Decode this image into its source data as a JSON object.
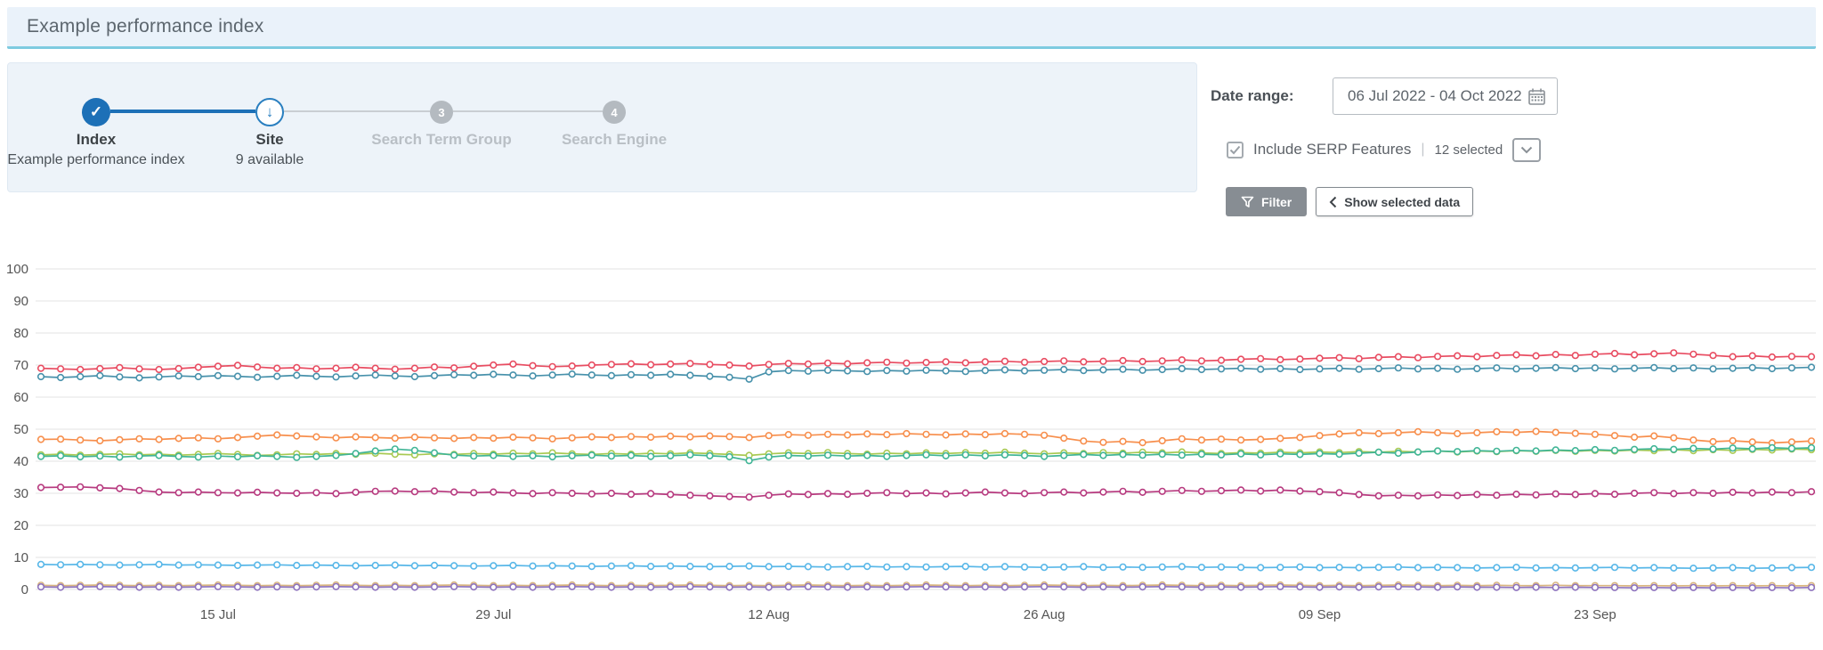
{
  "title": "Example performance index",
  "stepper": {
    "steps": [
      {
        "label": "Index",
        "sublabel": "Example performance index",
        "state": "complete"
      },
      {
        "label": "Site",
        "sublabel": "9 available",
        "state": "active"
      },
      {
        "label": "Search Term Group",
        "number": "3",
        "state": "upcoming"
      },
      {
        "label": "Search Engine",
        "number": "4",
        "state": "upcoming"
      }
    ]
  },
  "controls": {
    "date_range_label": "Date range:",
    "date_range_value": "06 Jul 2022 - 04 Oct 2022",
    "serp_label": "Include SERP Features",
    "serp_separator": "|",
    "serp_count": "12 selected",
    "serp_checked": true,
    "filter_label": "Filter",
    "show_selected_label": "Show selected data"
  },
  "colors": {
    "accent_blue": "#1d70b7",
    "title_underline": "#7ecbe0",
    "panel_bg": "#edf3f9",
    "grid": "#e3e3e3",
    "axis_text": "#555555"
  },
  "chart_data": {
    "type": "line",
    "title": "",
    "xlabel": "",
    "ylabel": "",
    "ylim": [
      0,
      100
    ],
    "y_ticks": [
      0,
      10,
      20,
      30,
      40,
      50,
      60,
      70,
      80,
      90,
      100
    ],
    "x_range": [
      "06 Jul 2022",
      "04 Oct 2022"
    ],
    "n_points": 91,
    "x_tick_labels": [
      "15 Jul",
      "29 Jul",
      "12 Aug",
      "26 Aug",
      "09 Sep",
      "23 Sep"
    ],
    "x_tick_indices": [
      9,
      23,
      37,
      51,
      65,
      79
    ],
    "grid": true,
    "legend": "none",
    "marker": "open-circle",
    "series": [
      {
        "name": "line-red",
        "color": "#e84c61",
        "values": [
          69.0,
          68.8,
          68.6,
          68.9,
          69.2,
          68.8,
          68.6,
          68.9,
          69.3,
          69.6,
          69.9,
          69.4,
          69.0,
          69.2,
          68.8,
          69.0,
          69.3,
          69.0,
          68.7,
          69.0,
          69.4,
          69.1,
          69.6,
          70.0,
          70.3,
          69.8,
          69.5,
          69.7,
          70.0,
          70.2,
          70.4,
          70.1,
          70.3,
          70.5,
          70.2,
          70.0,
          69.7,
          70.2,
          70.5,
          70.3,
          70.6,
          70.4,
          70.7,
          70.9,
          70.6,
          70.8,
          71.0,
          70.7,
          71.0,
          71.2,
          70.9,
          71.1,
          71.3,
          71.0,
          71.2,
          71.4,
          71.1,
          71.3,
          71.6,
          71.3,
          71.5,
          71.8,
          72.0,
          71.7,
          71.9,
          72.1,
          72.3,
          72.0,
          72.4,
          72.6,
          72.3,
          72.7,
          72.9,
          72.6,
          73.0,
          73.2,
          72.9,
          73.3,
          73.0,
          73.4,
          73.6,
          73.2,
          73.5,
          73.8,
          73.4,
          73.0,
          72.6,
          72.9,
          72.5,
          72.7,
          72.6
        ]
      },
      {
        "name": "line-teal-blue",
        "color": "#4791ab",
        "values": [
          66.4,
          66.1,
          66.4,
          66.7,
          66.3,
          66.0,
          66.3,
          66.6,
          66.4,
          66.7,
          66.5,
          66.2,
          66.5,
          66.8,
          66.5,
          66.3,
          66.6,
          66.9,
          66.6,
          66.4,
          66.7,
          67.0,
          66.8,
          67.1,
          66.9,
          66.6,
          66.9,
          67.2,
          66.9,
          66.7,
          67.0,
          66.8,
          67.1,
          66.8,
          66.5,
          66.2,
          65.6,
          67.9,
          68.3,
          68.1,
          68.4,
          68.2,
          68.0,
          68.3,
          68.1,
          68.4,
          68.2,
          68.0,
          68.3,
          68.5,
          68.2,
          68.4,
          68.6,
          68.3,
          68.5,
          68.7,
          68.4,
          68.6,
          68.9,
          68.6,
          68.8,
          69.0,
          68.7,
          68.9,
          68.6,
          68.8,
          69.0,
          68.7,
          68.9,
          69.1,
          68.8,
          69.0,
          68.7,
          68.9,
          69.1,
          68.8,
          69.0,
          69.2,
          68.9,
          69.1,
          68.8,
          69.0,
          69.2,
          68.9,
          69.1,
          68.8,
          69.0,
          69.2,
          68.9,
          69.1,
          69.3
        ]
      },
      {
        "name": "line-orange",
        "color": "#f78f4d",
        "values": [
          46.8,
          46.9,
          46.6,
          46.4,
          46.7,
          47.0,
          46.8,
          47.1,
          47.3,
          47.0,
          47.4,
          47.8,
          48.2,
          47.9,
          47.6,
          47.3,
          47.6,
          47.4,
          47.2,
          47.5,
          47.3,
          47.1,
          47.4,
          47.2,
          47.5,
          47.3,
          47.0,
          47.3,
          47.6,
          47.4,
          47.7,
          47.5,
          47.8,
          47.6,
          47.9,
          47.7,
          47.4,
          48.0,
          48.3,
          48.1,
          48.4,
          48.2,
          48.5,
          48.3,
          48.6,
          48.4,
          48.2,
          48.5,
          48.3,
          48.6,
          48.4,
          48.1,
          47.2,
          46.3,
          45.9,
          46.2,
          45.8,
          46.4,
          47.0,
          46.6,
          46.9,
          46.6,
          46.8,
          47.1,
          47.4,
          48.0,
          48.5,
          48.9,
          48.6,
          48.9,
          49.2,
          48.9,
          48.6,
          48.9,
          49.2,
          49.0,
          49.3,
          49.0,
          48.7,
          48.4,
          48.0,
          47.5,
          47.9,
          47.3,
          46.6,
          46.1,
          46.4,
          46.0,
          45.7,
          46.0,
          46.3
        ]
      },
      {
        "name": "line-lime",
        "color": "#a8c952",
        "values": [
          42.0,
          42.2,
          41.9,
          42.1,
          42.3,
          42.0,
          42.2,
          41.9,
          42.1,
          42.4,
          42.1,
          41.8,
          42.0,
          42.3,
          42.1,
          42.4,
          42.2,
          42.5,
          42.2,
          42.0,
          42.3,
          42.1,
          42.4,
          42.2,
          42.5,
          42.3,
          42.6,
          42.3,
          42.1,
          42.4,
          42.2,
          42.5,
          42.3,
          42.6,
          42.4,
          42.1,
          41.8,
          42.3,
          42.6,
          42.4,
          42.7,
          42.4,
          42.2,
          42.5,
          42.3,
          42.6,
          42.4,
          42.7,
          42.5,
          42.8,
          42.5,
          42.3,
          42.6,
          42.4,
          42.7,
          42.5,
          42.8,
          42.6,
          42.9,
          42.6,
          42.4,
          42.7,
          42.5,
          42.8,
          42.6,
          42.9,
          42.7,
          43.0,
          42.8,
          43.1,
          42.9,
          43.2,
          42.9,
          43.2,
          43.0,
          43.3,
          43.1,
          43.4,
          43.1,
          43.4,
          43.2,
          43.5,
          43.3,
          43.6,
          43.3,
          43.6,
          43.4,
          43.7,
          43.5,
          43.8,
          43.6
        ]
      },
      {
        "name": "line-green",
        "color": "#41b596",
        "values": [
          41.5,
          41.7,
          41.4,
          41.6,
          41.3,
          41.6,
          41.8,
          41.5,
          41.3,
          41.6,
          41.4,
          41.7,
          41.5,
          41.2,
          41.5,
          41.8,
          42.4,
          43.2,
          43.8,
          43.4,
          42.6,
          41.9,
          41.6,
          41.8,
          41.5,
          41.7,
          41.4,
          41.7,
          41.9,
          41.6,
          41.8,
          41.5,
          41.7,
          42.0,
          41.7,
          41.4,
          40.2,
          41.3,
          41.8,
          41.6,
          41.9,
          41.6,
          41.8,
          41.5,
          41.8,
          42.0,
          41.7,
          42.0,
          41.7,
          42.0,
          41.8,
          41.5,
          41.8,
          42.1,
          41.8,
          42.1,
          41.9,
          42.2,
          41.9,
          42.2,
          42.0,
          42.3,
          42.0,
          42.3,
          42.1,
          42.4,
          42.2,
          42.5,
          42.8,
          42.5,
          42.9,
          43.2,
          43.0,
          43.3,
          43.1,
          43.4,
          43.2,
          43.5,
          43.3,
          43.6,
          43.4,
          43.7,
          43.9,
          43.7,
          44.0,
          43.8,
          44.1,
          43.9,
          44.2,
          44.0,
          44.2
        ]
      },
      {
        "name": "line-magenta",
        "color": "#b73a7f",
        "values": [
          31.8,
          31.9,
          32.0,
          31.7,
          31.5,
          30.9,
          30.4,
          30.2,
          30.4,
          30.2,
          30.1,
          30.3,
          30.1,
          30.0,
          30.2,
          29.9,
          30.3,
          30.6,
          30.7,
          30.5,
          30.7,
          30.4,
          30.2,
          30.4,
          30.1,
          29.9,
          30.2,
          30.0,
          29.8,
          30.0,
          29.7,
          29.9,
          29.6,
          29.4,
          29.2,
          29.0,
          28.8,
          29.4,
          29.8,
          29.6,
          29.9,
          29.7,
          30.0,
          30.2,
          29.9,
          30.1,
          29.8,
          30.1,
          30.4,
          30.1,
          29.9,
          30.2,
          30.4,
          30.1,
          30.4,
          30.6,
          30.3,
          30.6,
          30.9,
          30.6,
          30.8,
          31.0,
          30.7,
          31.0,
          30.7,
          30.5,
          30.2,
          29.6,
          29.2,
          29.4,
          29.2,
          29.5,
          29.3,
          29.6,
          29.4,
          29.7,
          29.5,
          29.8,
          29.6,
          29.9,
          29.7,
          30.0,
          30.2,
          29.9,
          30.2,
          30.0,
          30.3,
          30.1,
          30.4,
          30.2,
          30.5
        ]
      },
      {
        "name": "line-sky",
        "color": "#58b7e8",
        "values": [
          7.8,
          7.7,
          7.8,
          7.7,
          7.6,
          7.7,
          7.8,
          7.6,
          7.7,
          7.6,
          7.5,
          7.6,
          7.7,
          7.5,
          7.6,
          7.5,
          7.4,
          7.5,
          7.6,
          7.4,
          7.5,
          7.4,
          7.3,
          7.4,
          7.5,
          7.3,
          7.4,
          7.3,
          7.2,
          7.3,
          7.4,
          7.2,
          7.3,
          7.2,
          7.1,
          7.2,
          7.3,
          7.1,
          7.2,
          7.1,
          7.0,
          7.1,
          7.2,
          7.0,
          7.1,
          7.0,
          7.1,
          7.2,
          7.0,
          7.1,
          7.0,
          6.9,
          7.0,
          7.1,
          6.9,
          7.0,
          6.9,
          7.0,
          7.1,
          6.9,
          7.0,
          6.9,
          6.8,
          6.9,
          7.0,
          6.8,
          6.9,
          6.8,
          6.9,
          7.0,
          6.8,
          6.9,
          6.8,
          6.7,
          6.8,
          6.9,
          6.7,
          6.8,
          6.7,
          6.8,
          6.9,
          6.7,
          6.8,
          6.7,
          6.6,
          6.7,
          6.8,
          6.6,
          6.7,
          6.8,
          6.9
        ]
      },
      {
        "name": "line-tan",
        "color": "#d9b580",
        "values": [
          1.3,
          1.2,
          1.3,
          1.4,
          1.3,
          1.2,
          1.3,
          1.2,
          1.3,
          1.4,
          1.3,
          1.2,
          1.3,
          1.2,
          1.3,
          1.4,
          1.3,
          1.2,
          1.3,
          1.2,
          1.3,
          1.4,
          1.3,
          1.2,
          1.3,
          1.2,
          1.3,
          1.4,
          1.3,
          1.2,
          1.3,
          1.2,
          1.3,
          1.4,
          1.3,
          1.2,
          1.3,
          1.2,
          1.3,
          1.4,
          1.3,
          1.2,
          1.3,
          1.2,
          1.3,
          1.4,
          1.3,
          1.2,
          1.3,
          1.2,
          1.3,
          1.4,
          1.3,
          1.2,
          1.3,
          1.2,
          1.3,
          1.4,
          1.3,
          1.2,
          1.3,
          1.2,
          1.3,
          1.4,
          1.3,
          1.2,
          1.3,
          1.2,
          1.3,
          1.4,
          1.3,
          1.2,
          1.3,
          1.2,
          1.3,
          1.2,
          1.2,
          1.3,
          1.2,
          1.2,
          1.2,
          1.1,
          1.2,
          1.1,
          1.2,
          1.1,
          1.2,
          1.1,
          1.2,
          1.1,
          1.2
        ]
      },
      {
        "name": "line-purple",
        "color": "#8d72bd",
        "values": [
          0.8,
          0.7,
          0.8,
          0.9,
          0.8,
          0.7,
          0.8,
          0.7,
          0.8,
          0.9,
          0.8,
          0.7,
          0.8,
          0.7,
          0.8,
          0.9,
          0.8,
          0.7,
          0.8,
          0.7,
          0.8,
          0.9,
          0.8,
          0.7,
          0.8,
          0.7,
          0.8,
          0.9,
          0.8,
          0.7,
          0.8,
          0.7,
          0.8,
          0.9,
          0.8,
          0.7,
          0.8,
          0.7,
          0.8,
          0.9,
          0.8,
          0.7,
          0.8,
          0.7,
          0.8,
          0.9,
          0.8,
          0.7,
          0.8,
          0.7,
          0.8,
          0.9,
          0.8,
          0.7,
          0.8,
          0.7,
          0.8,
          0.9,
          0.8,
          0.7,
          0.8,
          0.7,
          0.8,
          0.9,
          0.8,
          0.7,
          0.8,
          0.7,
          0.8,
          0.9,
          0.8,
          0.7,
          0.8,
          0.7,
          0.7,
          0.6,
          0.7,
          0.6,
          0.7,
          0.6,
          0.6,
          0.5,
          0.6,
          0.5,
          0.6,
          0.5,
          0.6,
          0.5,
          0.6,
          0.5,
          0.6
        ]
      }
    ]
  }
}
